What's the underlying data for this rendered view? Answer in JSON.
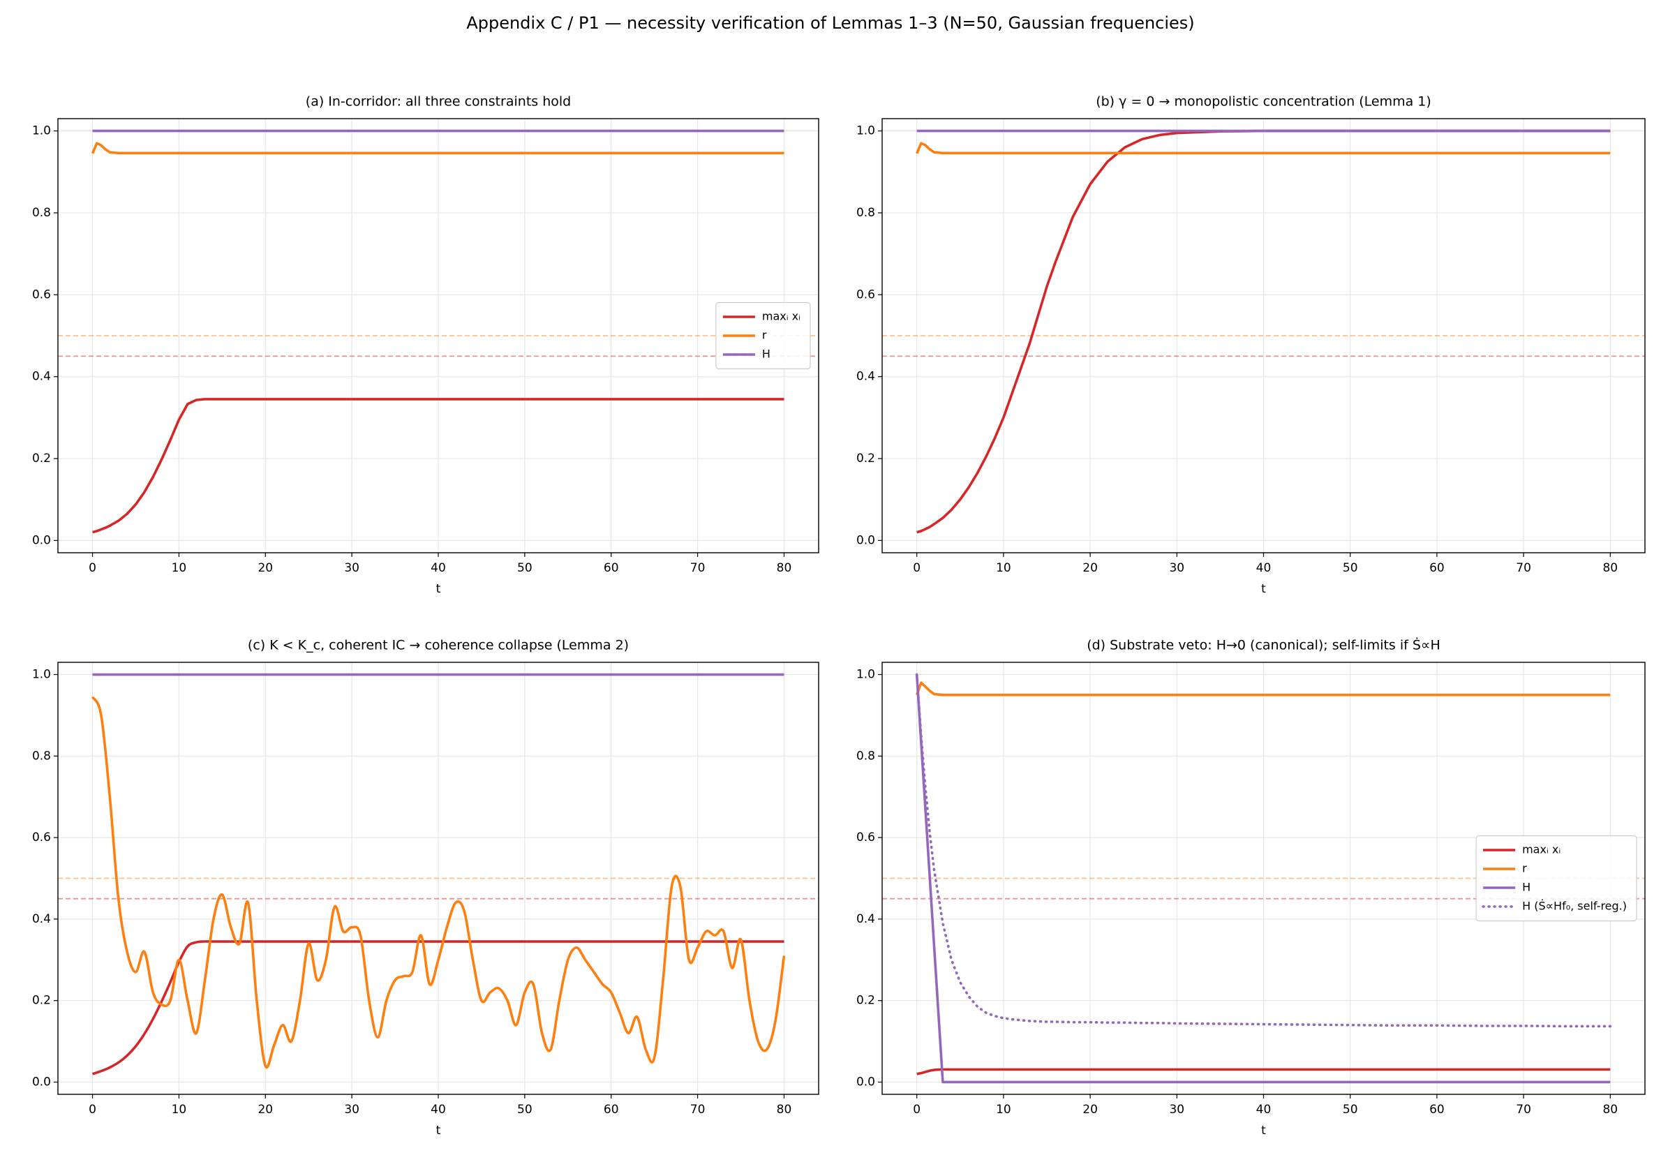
{
  "title": "Appendix C / P1 — necessity verification of Lemmas 1–3 (N=50, Gaussian frequencies)",
  "chart_data": [
    {
      "type": "line",
      "title": "(a) In-corridor: all three constraints hold",
      "xlabel": "t",
      "xlim": [
        -4,
        84
      ],
      "ylim": [
        -0.03,
        1.03
      ],
      "xticks": [
        0,
        10,
        20,
        30,
        40,
        50,
        60,
        70,
        80
      ],
      "yticks": [
        {
          "value": 0,
          "label": "0.0"
        },
        0.2,
        0.4,
        0.6,
        0.8,
        {
          "value": 1,
          "label": "1.0"
        }
      ],
      "grid": true,
      "legend": "center right",
      "hlines": [
        {
          "value": 0.5,
          "color": "#ff7f0e"
        },
        {
          "value": 0.45,
          "color": "#d62728"
        }
      ],
      "x": [
        0,
        0.5,
        1,
        1.5,
        2,
        3,
        4,
        5,
        6,
        7,
        8,
        9,
        10,
        11,
        12,
        13,
        14,
        15,
        16,
        18,
        20,
        22,
        24,
        26,
        28,
        30,
        35,
        40,
        45,
        50,
        55,
        60,
        65,
        70,
        75,
        80
      ],
      "series": [
        {
          "name": "maxᵢ xᵢ",
          "color": "#d62728",
          "values": [
            0.02,
            0.023,
            0.027,
            0.031,
            0.036,
            0.048,
            0.065,
            0.088,
            0.118,
            0.155,
            0.198,
            0.245,
            0.295,
            0.333,
            0.343,
            0.345,
            0.345,
            0.345,
            0.345,
            0.345,
            0.345,
            0.345,
            0.345,
            0.345,
            0.345,
            0.345,
            0.345,
            0.345,
            0.345,
            0.345,
            0.345,
            0.345,
            0.345,
            0.345,
            0.345,
            0.345
          ]
        },
        {
          "name": "r",
          "color": "#ff7f0e",
          "values": [
            0.945,
            0.97,
            0.965,
            0.955,
            0.948,
            0.946,
            0.946,
            0.946,
            0.946,
            0.946,
            0.946,
            0.946,
            0.946,
            0.946,
            0.946,
            0.946,
            0.946,
            0.946,
            0.946,
            0.946,
            0.946,
            0.946,
            0.946,
            0.946,
            0.946,
            0.946,
            0.946,
            0.946,
            0.946,
            0.946,
            0.946,
            0.946,
            0.946,
            0.946,
            0.946,
            0.946
          ]
        },
        {
          "name": "H",
          "color": "#9467bd",
          "values": [
            1,
            1,
            1,
            1,
            1,
            1,
            1,
            1,
            1,
            1,
            1,
            1,
            1,
            1,
            1,
            1,
            1,
            1,
            1,
            1,
            1,
            1,
            1,
            1,
            1,
            1,
            1,
            1,
            1,
            1,
            1,
            1,
            1,
            1,
            1,
            1
          ]
        }
      ]
    },
    {
      "type": "line",
      "title": "(b) γ = 0 → monopolistic concentration (Lemma 1)",
      "xlabel": "t",
      "xlim": [
        -4,
        84
      ],
      "ylim": [
        -0.03,
        1.03
      ],
      "xticks": [
        0,
        10,
        20,
        30,
        40,
        50,
        60,
        70,
        80
      ],
      "yticks": [
        {
          "value": 0,
          "label": "0.0"
        },
        0.2,
        0.4,
        0.6,
        0.8,
        {
          "value": 1,
          "label": "1.0"
        }
      ],
      "grid": true,
      "hlines": [
        {
          "value": 0.5,
          "color": "#ff7f0e"
        },
        {
          "value": 0.45,
          "color": "#d62728"
        }
      ],
      "x": [
        0,
        0.5,
        1,
        1.5,
        2,
        3,
        4,
        5,
        6,
        7,
        8,
        9,
        10,
        11,
        12,
        13,
        14,
        15,
        16,
        18,
        20,
        22,
        24,
        26,
        28,
        30,
        35,
        40,
        45,
        50,
        55,
        60,
        65,
        70,
        75,
        80
      ],
      "series": [
        {
          "color": "#d62728",
          "values": [
            0.02,
            0.023,
            0.028,
            0.033,
            0.04,
            0.055,
            0.075,
            0.1,
            0.13,
            0.165,
            0.205,
            0.25,
            0.3,
            0.36,
            0.42,
            0.48,
            0.55,
            0.62,
            0.68,
            0.79,
            0.87,
            0.925,
            0.96,
            0.98,
            0.99,
            0.995,
            0.999,
            1,
            1,
            1,
            1,
            1,
            1,
            1,
            1,
            1
          ]
        },
        {
          "color": "#ff7f0e",
          "values": [
            0.945,
            0.97,
            0.965,
            0.955,
            0.948,
            0.946,
            0.946,
            0.946,
            0.946,
            0.946,
            0.946,
            0.946,
            0.946,
            0.946,
            0.946,
            0.946,
            0.946,
            0.946,
            0.946,
            0.946,
            0.946,
            0.946,
            0.946,
            0.946,
            0.946,
            0.946,
            0.946,
            0.946,
            0.946,
            0.946,
            0.946,
            0.946,
            0.946,
            0.946,
            0.946,
            0.946
          ]
        },
        {
          "color": "#9467bd",
          "values": [
            1,
            1,
            1,
            1,
            1,
            1,
            1,
            1,
            1,
            1,
            1,
            1,
            1,
            1,
            1,
            1,
            1,
            1,
            1,
            1,
            1,
            1,
            1,
            1,
            1,
            1,
            1,
            1,
            1,
            1,
            1,
            1,
            1,
            1,
            1,
            1
          ]
        }
      ]
    },
    {
      "type": "line",
      "title": "(c) K < K_c, coherent IC → coherence collapse (Lemma 2)",
      "xlabel": "t",
      "xlim": [
        -4,
        84
      ],
      "ylim": [
        -0.03,
        1.03
      ],
      "xticks": [
        0,
        10,
        20,
        30,
        40,
        50,
        60,
        70,
        80
      ],
      "yticks": [
        {
          "value": 0,
          "label": "0.0"
        },
        0.2,
        0.4,
        0.6,
        0.8,
        {
          "value": 1,
          "label": "1.0"
        }
      ],
      "grid": true,
      "smooth": true,
      "hlines": [
        {
          "value": 0.5,
          "color": "#ff7f0e"
        },
        {
          "value": 0.45,
          "color": "#d62728"
        }
      ],
      "x": [
        0,
        1,
        2,
        3,
        4,
        5,
        6,
        7,
        8,
        9,
        10,
        11,
        12,
        13,
        14,
        15,
        16,
        17,
        18,
        19,
        20,
        21,
        22,
        23,
        24,
        25,
        26,
        27,
        28,
        29,
        30,
        31,
        32,
        33,
        34,
        35,
        36,
        37,
        38,
        39,
        40,
        41,
        42,
        43,
        44,
        45,
        46,
        47,
        48,
        49,
        50,
        51,
        52,
        53,
        54,
        55,
        56,
        57,
        58,
        59,
        60,
        61,
        62,
        63,
        64,
        65,
        66,
        67,
        68,
        69,
        70,
        71,
        72,
        73,
        74,
        75,
        76,
        77,
        78,
        79,
        80
      ],
      "series": [
        {
          "color": "#d62728",
          "values": [
            0.02,
            0.027,
            0.036,
            0.048,
            0.065,
            0.088,
            0.118,
            0.155,
            0.198,
            0.245,
            0.295,
            0.333,
            0.343,
            0.345,
            0.345,
            0.345,
            0.345,
            0.345,
            0.345,
            0.345,
            0.345,
            0.345,
            0.345,
            0.345,
            0.345,
            0.345,
            0.345,
            0.345,
            0.345,
            0.345,
            0.345,
            0.345,
            0.345,
            0.345,
            0.345,
            0.345,
            0.345,
            0.345,
            0.345,
            0.345,
            0.345,
            0.345,
            0.345,
            0.345,
            0.345,
            0.345,
            0.345,
            0.345,
            0.345,
            0.345,
            0.345,
            0.345,
            0.345,
            0.345,
            0.345,
            0.345,
            0.345,
            0.345,
            0.345,
            0.345,
            0.345,
            0.345,
            0.345,
            0.345,
            0.345,
            0.345,
            0.345,
            0.345,
            0.345,
            0.345,
            0.345,
            0.345,
            0.345,
            0.345,
            0.345,
            0.345,
            0.345,
            0.345,
            0.345,
            0.345,
            0.345
          ]
        },
        {
          "color": "#ff7f0e",
          "values": [
            0.945,
            0.9,
            0.7,
            0.45,
            0.32,
            0.27,
            0.32,
            0.22,
            0.19,
            0.2,
            0.3,
            0.2,
            0.12,
            0.25,
            0.4,
            0.46,
            0.38,
            0.34,
            0.44,
            0.2,
            0.04,
            0.09,
            0.14,
            0.1,
            0.2,
            0.34,
            0.25,
            0.3,
            0.43,
            0.37,
            0.38,
            0.36,
            0.2,
            0.11,
            0.2,
            0.25,
            0.26,
            0.27,
            0.36,
            0.24,
            0.3,
            0.38,
            0.44,
            0.42,
            0.3,
            0.2,
            0.22,
            0.23,
            0.2,
            0.14,
            0.22,
            0.24,
            0.12,
            0.08,
            0.2,
            0.3,
            0.33,
            0.3,
            0.27,
            0.24,
            0.22,
            0.17,
            0.12,
            0.16,
            0.08,
            0.06,
            0.25,
            0.48,
            0.48,
            0.3,
            0.33,
            0.37,
            0.36,
            0.37,
            0.28,
            0.35,
            0.2,
            0.1,
            0.08,
            0.15,
            0.31
          ]
        },
        {
          "color": "#9467bd",
          "values": [
            1,
            1,
            1,
            1,
            1,
            1,
            1,
            1,
            1,
            1,
            1,
            1,
            1,
            1,
            1,
            1,
            1,
            1,
            1,
            1,
            1,
            1,
            1,
            1,
            1,
            1,
            1,
            1,
            1,
            1,
            1,
            1,
            1,
            1,
            1,
            1,
            1,
            1,
            1,
            1,
            1,
            1,
            1,
            1,
            1,
            1,
            1,
            1,
            1,
            1,
            1,
            1,
            1,
            1,
            1,
            1,
            1,
            1,
            1,
            1,
            1,
            1,
            1,
            1,
            1,
            1,
            1,
            1,
            1,
            1,
            1,
            1,
            1,
            1,
            1,
            1,
            1,
            1,
            1,
            1,
            1
          ]
        }
      ]
    },
    {
      "type": "line",
      "title": "(d) Substrate veto: H→0 (canonical); self-limits if Ṡ∝H",
      "xlabel": "t",
      "xlim": [
        -4,
        84
      ],
      "ylim": [
        -0.03,
        1.03
      ],
      "xticks": [
        0,
        10,
        20,
        30,
        40,
        50,
        60,
        70,
        80
      ],
      "yticks": [
        {
          "value": 0,
          "label": "0.0"
        },
        0.2,
        0.4,
        0.6,
        0.8,
        {
          "value": 1,
          "label": "1.0"
        }
      ],
      "grid": true,
      "legend": "center right",
      "hlines": [
        {
          "value": 0.5,
          "color": "#ff7f0e"
        },
        {
          "value": 0.45,
          "color": "#d62728"
        }
      ],
      "x": [
        0,
        0.5,
        1,
        1.5,
        2,
        3,
        4,
        5,
        6,
        7,
        8,
        9,
        10,
        11,
        12,
        13,
        14,
        15,
        16,
        18,
        20,
        22,
        24,
        26,
        28,
        30,
        35,
        40,
        45,
        50,
        55,
        60,
        65,
        70,
        75,
        80
      ],
      "series": [
        {
          "name": "maxᵢ xᵢ",
          "color": "#d62728",
          "values": [
            0.02,
            0.022,
            0.025,
            0.028,
            0.03,
            0.031,
            0.031,
            0.031,
            0.031,
            0.031,
            0.031,
            0.031,
            0.031,
            0.031,
            0.031,
            0.031,
            0.031,
            0.031,
            0.031,
            0.031,
            0.031,
            0.031,
            0.031,
            0.031,
            0.031,
            0.031,
            0.031,
            0.031,
            0.031,
            0.031,
            0.031,
            0.031,
            0.031,
            0.031,
            0.031,
            0.031
          ]
        },
        {
          "name": "r",
          "color": "#ff7f0e",
          "values": [
            0.95,
            0.98,
            0.97,
            0.96,
            0.952,
            0.95,
            0.95,
            0.95,
            0.95,
            0.95,
            0.95,
            0.95,
            0.95,
            0.95,
            0.95,
            0.95,
            0.95,
            0.95,
            0.95,
            0.95,
            0.95,
            0.95,
            0.95,
            0.95,
            0.95,
            0.95,
            0.95,
            0.95,
            0.95,
            0.95,
            0.95,
            0.95,
            0.95,
            0.95,
            0.95,
            0.95
          ]
        },
        {
          "name": "H",
          "color": "#9467bd",
          "values": [
            1,
            0.833,
            0.667,
            0.5,
            0.333,
            0,
            0,
            0,
            0,
            0,
            0,
            0,
            0,
            0,
            0,
            0,
            0,
            0,
            0,
            0,
            0,
            0,
            0,
            0,
            0,
            0,
            0,
            0,
            0,
            0,
            0,
            0,
            0,
            0,
            0,
            0
          ]
        },
        {
          "name": "H (Ṡ∝Hf₀, self-reg.)",
          "color": "#9467bd",
          "style": "dotted",
          "values": [
            1,
            0.85,
            0.72,
            0.61,
            0.52,
            0.39,
            0.3,
            0.245,
            0.21,
            0.185,
            0.17,
            0.162,
            0.157,
            0.154,
            0.152,
            0.15,
            0.149,
            0.148,
            0.148,
            0.147,
            0.147,
            0.146,
            0.146,
            0.145,
            0.145,
            0.144,
            0.143,
            0.142,
            0.141,
            0.14,
            0.139,
            0.139,
            0.138,
            0.138,
            0.137,
            0.137
          ]
        }
      ]
    }
  ]
}
